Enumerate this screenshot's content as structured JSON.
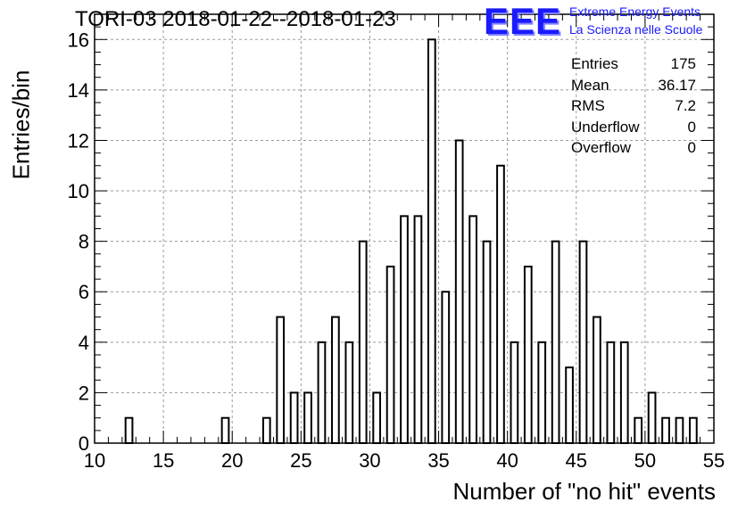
{
  "title": "TORI-03 2018-01-22--2018-01-23",
  "logo": {
    "mark": "EEE",
    "line1": "Extreme Energy Events",
    "line2": "La Scienza nelle Scuole",
    "color": "#1a1aff"
  },
  "stats": [
    {
      "label": "Entries",
      "value": "175"
    },
    {
      "label": "Mean",
      "value": "36.17"
    },
    {
      "label": "RMS",
      "value": "7.2"
    },
    {
      "label": "Underflow",
      "value": "0"
    },
    {
      "label": "Overflow",
      "value": "0"
    }
  ],
  "chart_data": {
    "type": "bar",
    "title": "TORI-03 2018-01-22--2018-01-23",
    "xlabel": "Number of \"no hit\" events",
    "ylabel": "Entries/bin",
    "xlim": [
      10,
      55
    ],
    "ylim": [
      0,
      17
    ],
    "grid": true,
    "x_ticks": [
      10,
      15,
      20,
      25,
      30,
      35,
      40,
      45,
      50,
      55
    ],
    "y_ticks": [
      0,
      2,
      4,
      6,
      8,
      10,
      12,
      14,
      16
    ],
    "bins": [
      {
        "x": 12,
        "value": 1
      },
      {
        "x": 19,
        "value": 1
      },
      {
        "x": 22,
        "value": 1
      },
      {
        "x": 23,
        "value": 5
      },
      {
        "x": 24,
        "value": 2
      },
      {
        "x": 25,
        "value": 2
      },
      {
        "x": 26,
        "value": 4
      },
      {
        "x": 27,
        "value": 5
      },
      {
        "x": 28,
        "value": 4
      },
      {
        "x": 29,
        "value": 8
      },
      {
        "x": 30,
        "value": 2
      },
      {
        "x": 31,
        "value": 7
      },
      {
        "x": 32,
        "value": 9
      },
      {
        "x": 33,
        "value": 9
      },
      {
        "x": 34,
        "value": 16
      },
      {
        "x": 35,
        "value": 6
      },
      {
        "x": 36,
        "value": 12
      },
      {
        "x": 37,
        "value": 9
      },
      {
        "x": 38,
        "value": 8
      },
      {
        "x": 39,
        "value": 11
      },
      {
        "x": 40,
        "value": 4
      },
      {
        "x": 41,
        "value": 7
      },
      {
        "x": 42,
        "value": 4
      },
      {
        "x": 43,
        "value": 8
      },
      {
        "x": 44,
        "value": 3
      },
      {
        "x": 45,
        "value": 8
      },
      {
        "x": 46,
        "value": 5
      },
      {
        "x": 47,
        "value": 4
      },
      {
        "x": 48,
        "value": 4
      },
      {
        "x": 49,
        "value": 1
      },
      {
        "x": 50,
        "value": 2
      },
      {
        "x": 51,
        "value": 1
      },
      {
        "x": 52,
        "value": 1
      },
      {
        "x": 53,
        "value": 1
      }
    ]
  }
}
